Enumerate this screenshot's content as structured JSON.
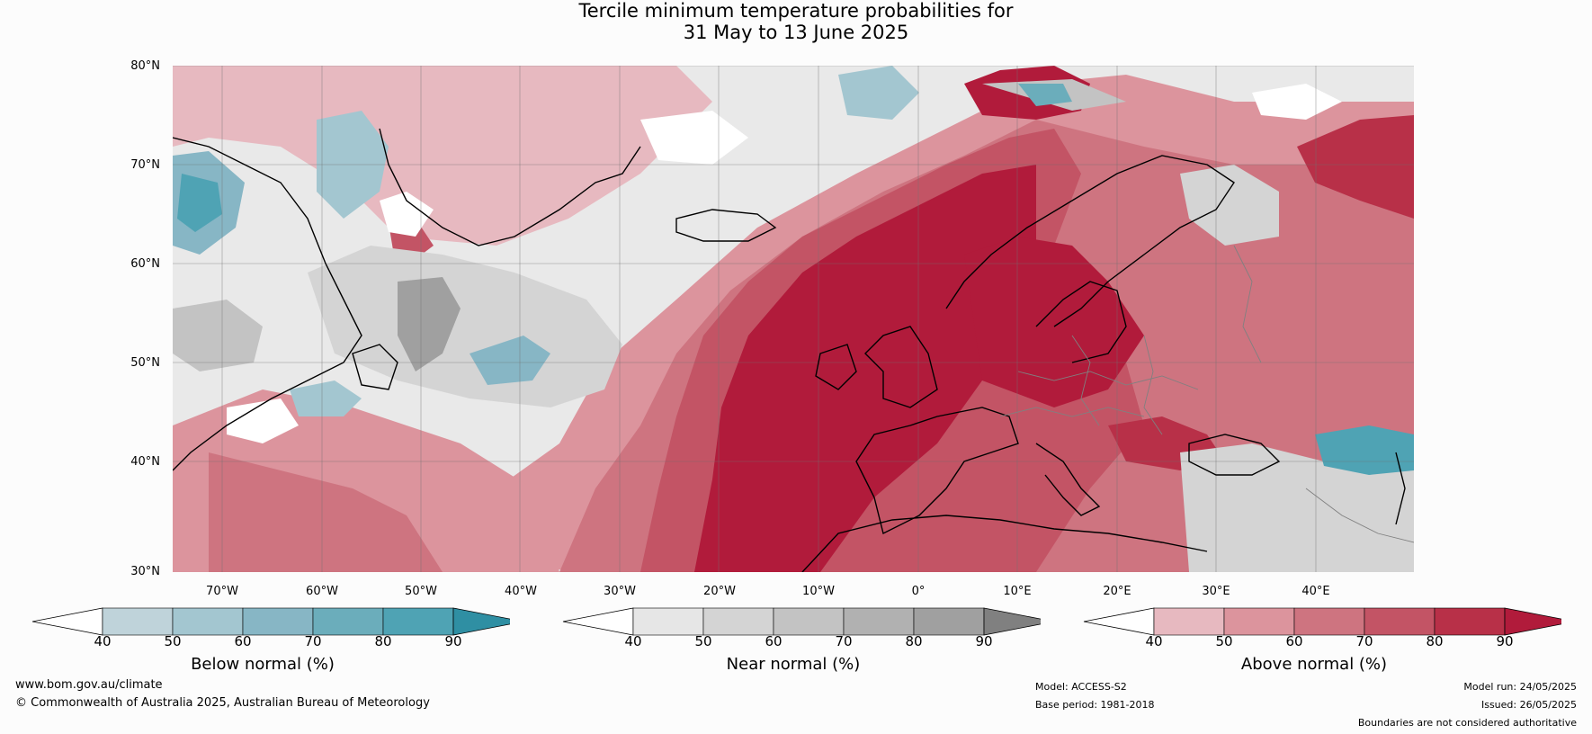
{
  "title": {
    "line1": "Tercile minimum temperature probabilities for",
    "line2": "31 May to 13 June 2025"
  },
  "map": {
    "lat_labels": [
      "80°N",
      "70°N",
      "60°N",
      "50°N",
      "40°N",
      "30°N"
    ],
    "lon_labels": [
      "70°W",
      "60°W",
      "50°W",
      "40°W",
      "30°W",
      "20°W",
      "10°W",
      "0°",
      "10°E",
      "20°E",
      "30°E",
      "40°E"
    ],
    "colors": {
      "ocean_land_base": "#e9e9e9",
      "coastline": "#000000",
      "border": "#808080",
      "graticule": "#707070"
    }
  },
  "colorbars": [
    {
      "title": "Below normal (%)",
      "ticks": [
        "40",
        "50",
        "60",
        "70",
        "80",
        "90"
      ],
      "colors": [
        "#bfd3da",
        "#a3c6d0",
        "#87b6c5",
        "#6badbb",
        "#4fa3b4",
        "#2f8fa3"
      ]
    },
    {
      "title": "Near normal (%)",
      "ticks": [
        "40",
        "50",
        "60",
        "70",
        "80",
        "90"
      ],
      "colors": [
        "#e6e6e6",
        "#d4d4d4",
        "#c3c3c3",
        "#b1b1b1",
        "#a0a0a0",
        "#808080"
      ]
    },
    {
      "title": "Above normal (%)",
      "ticks": [
        "40",
        "50",
        "60",
        "70",
        "80",
        "90"
      ],
      "colors": [
        "#e7b9c0",
        "#dc949d",
        "#ce7480",
        "#c35465",
        "#b83048",
        "#b11b3b"
      ]
    }
  ],
  "footer": {
    "website": "www.bom.gov.au/climate",
    "copyright": "© Commonwealth of Australia 2025, Australian Bureau of Meteorology",
    "model": "Model: ACCESS-S2",
    "base_period": "Base period: 1981-2018",
    "model_run": "Model run: 24/05/2025",
    "issued": "Issued: 26/05/2025",
    "disclaimer": "Boundaries are not considered authoritative"
  }
}
